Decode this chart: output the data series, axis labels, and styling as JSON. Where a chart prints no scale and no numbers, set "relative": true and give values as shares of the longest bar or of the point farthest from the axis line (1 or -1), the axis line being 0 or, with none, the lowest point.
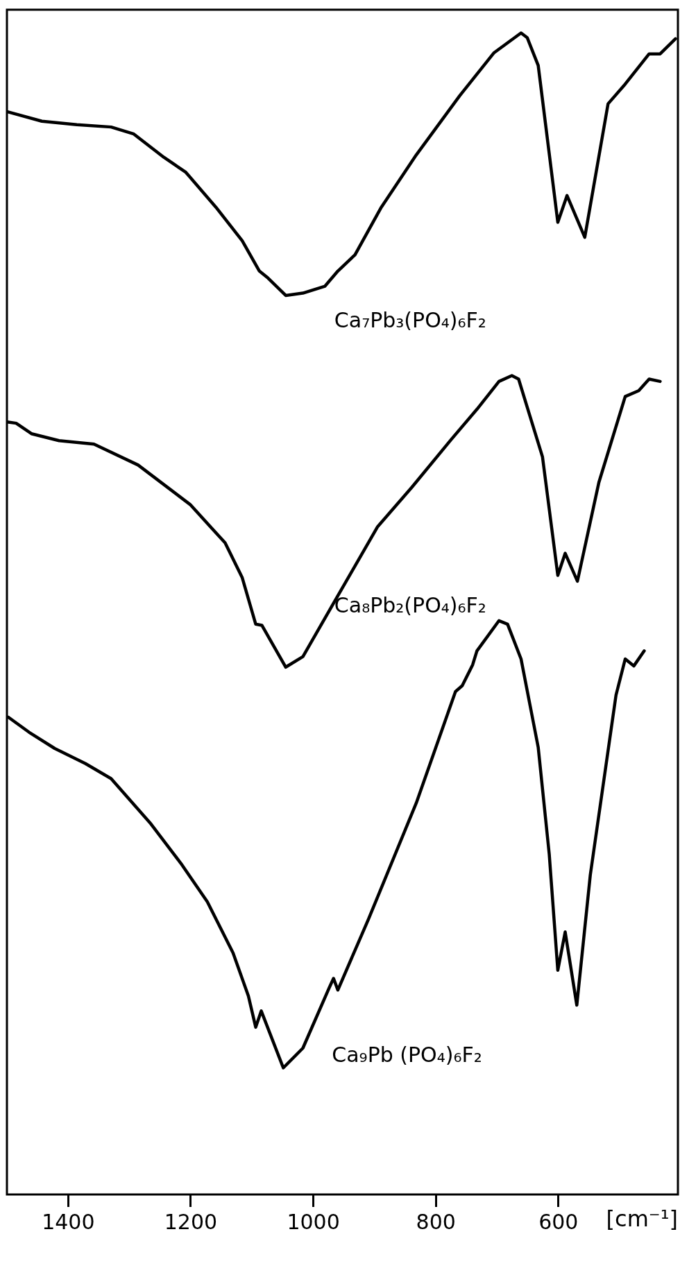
{
  "chart_data": {
    "type": "line",
    "relative": true,
    "xlabel": "[cm⁻¹]",
    "xlim": [
      1500,
      405
    ],
    "xticks": [
      1400,
      1200,
      1000,
      800,
      600
    ],
    "legend": false,
    "grid": false,
    "marker": "none",
    "line_style": "solid",
    "series": [
      {
        "name": "Ca₇Pb₃(PO₄)₆F₂",
        "color": "#000000",
        "x": [
          1498,
          1443,
          1386,
          1330,
          1293,
          1244,
          1208,
          1159,
          1116,
          1088,
          1074,
          1045,
          1017,
          981,
          960,
          932,
          889,
          832,
          761,
          705,
          661,
          651,
          633,
          601,
          586,
          557,
          519,
          491,
          452,
          434,
          409
        ],
        "values": [
          0.932,
          0.924,
          0.921,
          0.919,
          0.913,
          0.893,
          0.88,
          0.85,
          0.821,
          0.795,
          0.789,
          0.774,
          0.776,
          0.782,
          0.795,
          0.809,
          0.85,
          0.895,
          0.946,
          0.983,
          1.0,
          0.996,
          0.972,
          0.837,
          0.86,
          0.824,
          0.939,
          0.956,
          0.982,
          0.982,
          0.995
        ]
      },
      {
        "name": "Ca₈Pb₂(PO₄)₆F₂",
        "color": "#000000",
        "x": [
          1498,
          1485,
          1460,
          1415,
          1358,
          1286,
          1201,
          1144,
          1116,
          1094,
          1084,
          1045,
          1017,
          967,
          895,
          839,
          775,
          733,
          697,
          676,
          665,
          626,
          601,
          589,
          569,
          534,
          491,
          469,
          452,
          434
        ],
        "values": [
          0.665,
          0.664,
          0.655,
          0.649,
          0.646,
          0.628,
          0.594,
          0.561,
          0.531,
          0.491,
          0.49,
          0.454,
          0.463,
          0.509,
          0.575,
          0.609,
          0.65,
          0.676,
          0.7,
          0.705,
          0.702,
          0.635,
          0.533,
          0.552,
          0.528,
          0.613,
          0.687,
          0.692,
          0.702,
          0.7
        ]
      },
      {
        "name": "Ca₉Pb (PO₄)₆F₂",
        "color": "#000000",
        "x": [
          1498,
          1464,
          1422,
          1372,
          1330,
          1265,
          1216,
          1173,
          1131,
          1106,
          1094,
          1085,
          1049,
          1017,
          974,
          967,
          960,
          910,
          832,
          768,
          757,
          740,
          733,
          697,
          683,
          661,
          633,
          615,
          601,
          589,
          570,
          548,
          506,
          491,
          477,
          460
        ],
        "values": [
          0.411,
          0.398,
          0.384,
          0.371,
          0.358,
          0.319,
          0.285,
          0.252,
          0.208,
          0.171,
          0.144,
          0.158,
          0.109,
          0.126,
          0.178,
          0.186,
          0.176,
          0.237,
          0.337,
          0.433,
          0.438,
          0.456,
          0.468,
          0.494,
          0.491,
          0.461,
          0.385,
          0.293,
          0.193,
          0.226,
          0.163,
          0.275,
          0.43,
          0.461,
          0.455,
          0.468
        ]
      }
    ]
  }
}
